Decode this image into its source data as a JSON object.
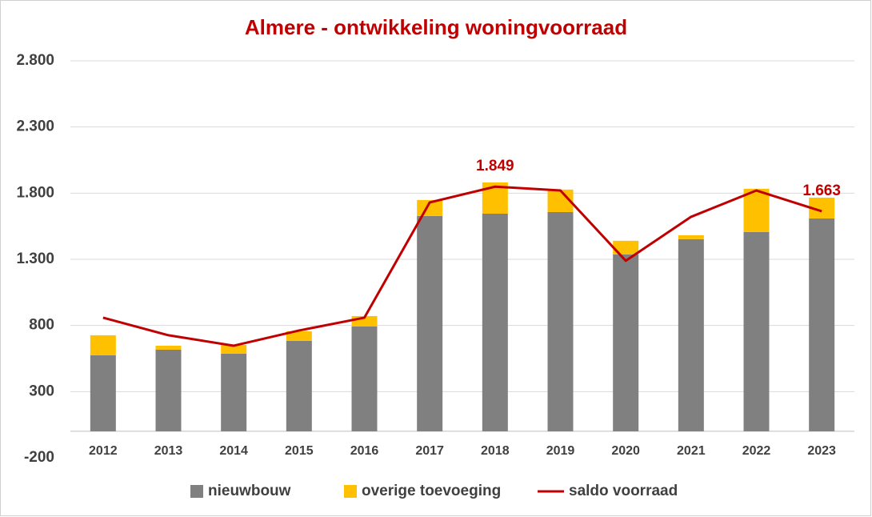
{
  "chart_data": {
    "type": "bar",
    "stacked": true,
    "title": "Almere - ontwikkeling woningvoorraad",
    "categories": [
      "2012",
      "2013",
      "2014",
      "2015",
      "2016",
      "2017",
      "2018",
      "2019",
      "2020",
      "2021",
      "2022",
      "2023"
    ],
    "series": [
      {
        "name": "nieuwbouw",
        "type": "bar",
        "color": "#808080",
        "values": [
          575,
          617,
          587,
          684,
          792,
          1627,
          1645,
          1657,
          1337,
          1452,
          1506,
          1609
        ]
      },
      {
        "name": "overige toevoeging",
        "type": "bar",
        "color": "#ffc000",
        "values": [
          151,
          30,
          66,
          72,
          79,
          121,
          236,
          170,
          103,
          30,
          327,
          157
        ]
      },
      {
        "name": "saldo voorraad",
        "type": "line",
        "color": "#c00000",
        "values": [
          859,
          726,
          647,
          762,
          859,
          1730,
          1849,
          1820,
          1289,
          1621,
          1820,
          1663
        ],
        "value_labels": [
          null,
          null,
          null,
          null,
          null,
          null,
          "1.849",
          null,
          null,
          null,
          null,
          "1.663"
        ]
      }
    ],
    "ylim": [
      -200,
      2800
    ],
    "yticks": [
      {
        "value": -200,
        "label": "-200"
      },
      300,
      800,
      {
        "value": 1300,
        "label": "1.300"
      },
      {
        "value": 1800,
        "label": "1.800"
      },
      {
        "value": 2300,
        "label": "2.300"
      },
      {
        "value": 2800,
        "label": "2.800"
      }
    ],
    "grid": true,
    "legend": "bottom"
  }
}
